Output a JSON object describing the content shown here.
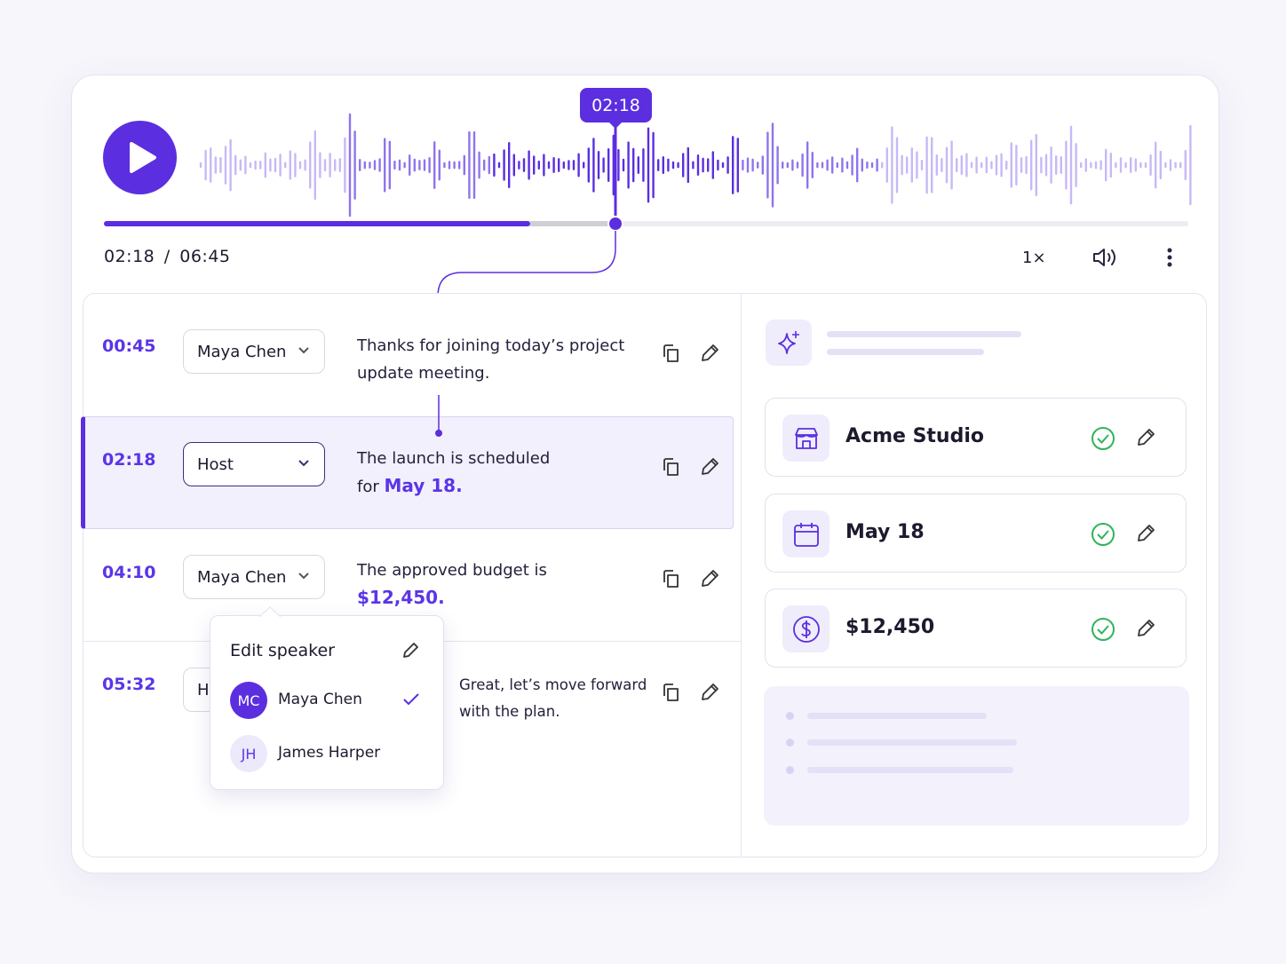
{
  "player": {
    "tooltip_time": "02:18",
    "time_display": "02:18 / 06:45",
    "speed": "1×"
  },
  "transcript": [
    {
      "time": "00:45",
      "speaker": "Maya Chen",
      "text": "Thanks for joining today’s project update meeting."
    },
    {
      "time": "02:18",
      "speaker": "Host",
      "text": "The launch is scheduled for ",
      "highlight": "May 18."
    },
    {
      "time": "04:10",
      "speaker": "Maya Chen",
      "text": "The approved budget is ",
      "highlight": "$12,450."
    },
    {
      "time": "05:32",
      "speaker": "H",
      "text": "Great, let’s move forward with the plan."
    }
  ],
  "speaker_popup": {
    "title": "Edit speaker",
    "options": [
      {
        "initials": "MC",
        "name": "Maya Chen"
      },
      {
        "initials": "JH",
        "name": "James Harper"
      }
    ]
  },
  "entities": [
    {
      "label": "Acme Studio"
    },
    {
      "label": "May 18"
    },
    {
      "label": "$12,450"
    }
  ]
}
